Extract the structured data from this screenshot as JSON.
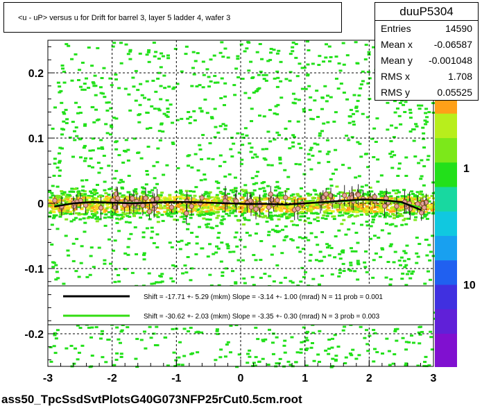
{
  "chart_data": {
    "type": "scatter",
    "title": "<u - uP>       versus   u for Drift for barrel 3, layer 5 ladder 4, wafer 3",
    "xlim": [
      -3,
      3
    ],
    "ylim": [
      -0.25,
      0.25
    ],
    "x_ticks": [
      "-3",
      "-2",
      "-1",
      "0",
      "1",
      "2",
      "3"
    ],
    "y_ticks": [
      "0.2",
      "0.1",
      "0",
      "-0.1",
      "-0.2"
    ],
    "grid": true,
    "colorbar_ticks": [
      "1",
      "10"
    ],
    "stats": {
      "name": "duuP5304",
      "rows": [
        {
          "label": "Entries",
          "value": "14590"
        },
        {
          "label": "Mean x",
          "value": "-0.06587"
        },
        {
          "label": "Mean y",
          "value": "-0.001048"
        },
        {
          "label": "RMS x",
          "value": "1.708"
        },
        {
          "label": "RMS y",
          "value": "0.05525"
        }
      ]
    },
    "legend": [
      {
        "color": "#000000",
        "text": "Shift =   -17.71 +- 5.29 (mkm) Slope =    -3.14 +- 1.00 (mrad)  N = 11 prob = 0.001"
      },
      {
        "color": "#33dd11",
        "text": "Shift =   -30.62 +- 2.03 (mkm) Slope =    -3.35 +- 0.30 (mrad)  N = 3 prob = 0.003"
      }
    ],
    "profile_black": {
      "x": [
        -2.9,
        -2.6,
        -2.3,
        -2.0,
        -1.7,
        -1.4,
        -1.1,
        -0.8,
        -0.5,
        -0.2,
        0.1,
        0.4,
        0.7,
        1.0,
        1.3,
        1.6,
        1.9,
        2.2,
        2.5,
        2.8
      ],
      "y": [
        -0.005,
        0.0,
        0.002,
        0.001,
        0.0,
        0.001,
        0.002,
        0.002,
        0.001,
        0.0,
        -0.001,
        -0.001,
        -0.002,
        0.0,
        0.002,
        0.004,
        0.006,
        0.005,
        0.002,
        -0.01
      ]
    },
    "profile_green": {
      "x": [
        -2.9,
        -2.6,
        -2.3,
        -2.0,
        -1.7,
        -1.4,
        -1.1,
        -0.8,
        -0.5,
        -0.2,
        0.1,
        0.4,
        0.7,
        1.0,
        1.3,
        1.6,
        1.9,
        2.2,
        2.5,
        2.8
      ],
      "y": [
        -0.003,
        0.0,
        0.001,
        0.001,
        0.001,
        0.001,
        0.002,
        0.002,
        0.001,
        0.0,
        -0.001,
        -0.001,
        -0.002,
        0.0,
        0.001,
        0.003,
        0.005,
        0.004,
        0.001,
        -0.006
      ]
    }
  },
  "footer": "ass50_TpcSsdSvtPlotsG40G073NFP25rCut0.5cm.root"
}
